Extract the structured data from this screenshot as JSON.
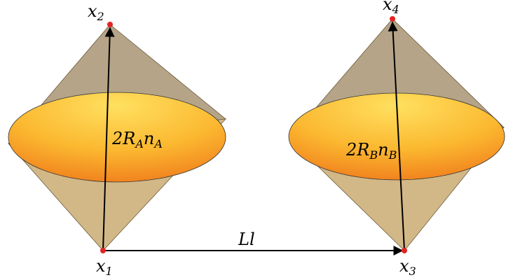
{
  "nodes": [
    {
      "symbol": "x",
      "subscript": "1"
    },
    {
      "symbol": "x",
      "subscript": "2"
    },
    {
      "symbol": "x",
      "subscript": "3"
    },
    {
      "symbol": "x",
      "subscript": "4"
    }
  ],
  "vectors": [
    {
      "parts": [
        "2R",
        "A",
        "n",
        "A"
      ]
    },
    {
      "parts": [
        "2R",
        "B",
        "n",
        "B"
      ]
    }
  ],
  "separation": {
    "label": "Ll"
  }
}
